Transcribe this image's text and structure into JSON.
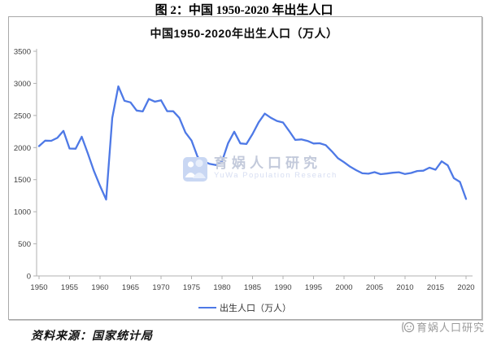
{
  "figure": {
    "caption": "图 2：中国 1950-2020 年出生人口",
    "source_note": "资料来源：国家统计局"
  },
  "watermark": {
    "center_text": "育娲人口研究",
    "center_subtext": "YuWa Population Research",
    "corner_text": "育娲人口研究"
  },
  "colors": {
    "line": "#4e79e6",
    "axis": "#b0b0b0",
    "tick_label": "#3f3f3f",
    "panel_border": "#a9a9a9",
    "watermark_blue": "#c3cadb",
    "watermark_gray": "#9b9b9b"
  },
  "chart_data": {
    "type": "line",
    "title": "中国1950-2020年出生人口（万人）",
    "legend_label": "出生人口（万人）",
    "legend_position": "bottom",
    "xlabel": "",
    "ylabel": "",
    "grid": false,
    "ylim": [
      0,
      3500
    ],
    "y_ticks": [
      0,
      500,
      1000,
      1500,
      2000,
      2500,
      3000,
      3500
    ],
    "x_ticks": [
      1950,
      1955,
      1960,
      1965,
      1970,
      1975,
      1980,
      1985,
      1990,
      1995,
      2000,
      2005,
      2010,
      2015,
      2020
    ],
    "line_color": "#4e79e6",
    "series": [
      {
        "name": "出生人口（万人）",
        "start_year": 1950,
        "end_year": 2020,
        "values": [
          2023,
          2107,
          2105,
          2151,
          2260,
          1984,
          1982,
          2169,
          1909,
          1635,
          1402,
          1190,
          2460,
          2954,
          2729,
          2704,
          2577,
          2563,
          2757,
          2715,
          2736,
          2567,
          2566,
          2463,
          2235,
          2109,
          1853,
          1786,
          1745,
          1727,
          1787,
          2069,
          2247,
          2065,
          2055,
          2211,
          2393,
          2529,
          2464,
          2414,
          2391,
          2258,
          2119,
          2126,
          2104,
          2063,
          2067,
          2038,
          1942,
          1834,
          1771,
          1702,
          1647,
          1599,
          1593,
          1617,
          1585,
          1595,
          1608,
          1615,
          1588,
          1604,
          1635,
          1640,
          1687,
          1655,
          1786,
          1723,
          1523,
          1465,
          1200
        ]
      }
    ]
  }
}
